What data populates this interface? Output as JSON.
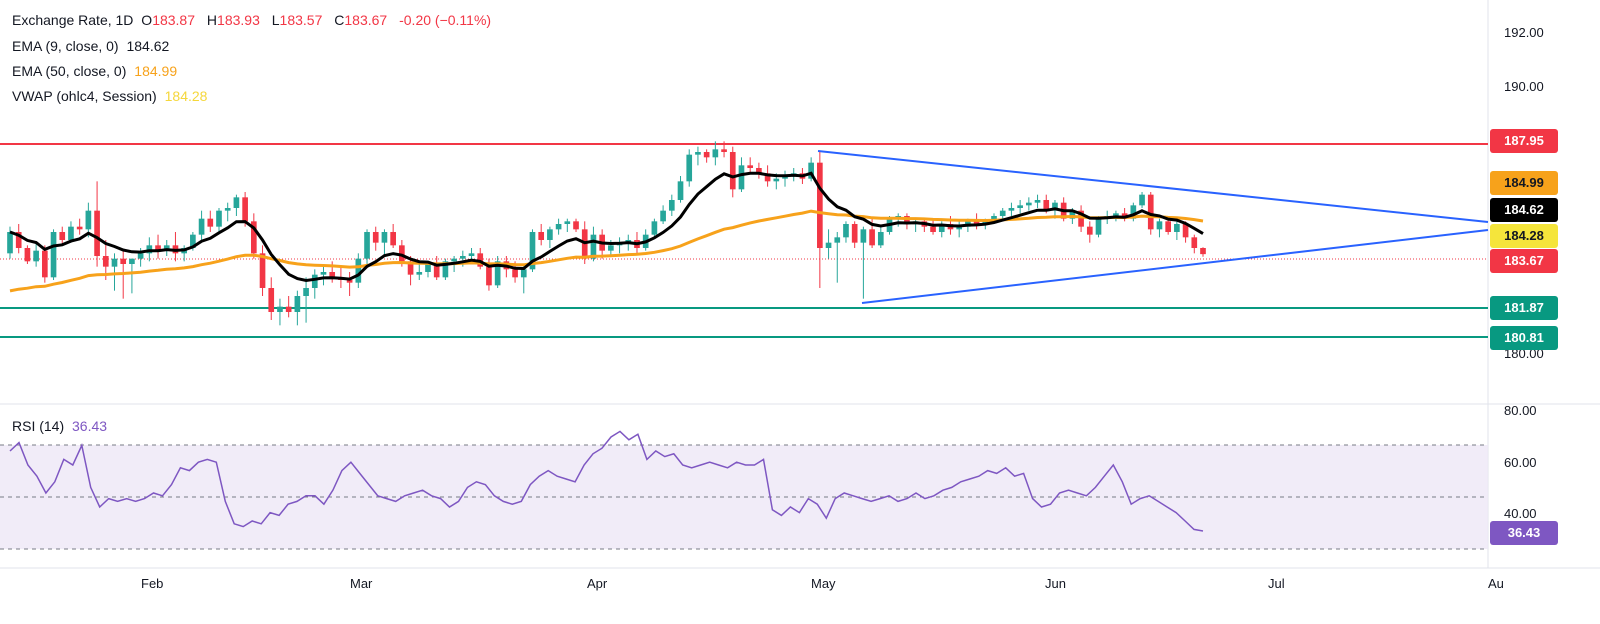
{
  "legend": {
    "title": "Exchange Rate, 1D",
    "o_label": "O",
    "o": "183.87",
    "h_label": "H",
    "h": "183.93",
    "l_label": "L",
    "l": "183.57",
    "c_label": "C",
    "c": "183.67",
    "change": "-0.20 (−0.11%)",
    "ema9_label": "EMA (9, close, 0)",
    "ema9": "184.62",
    "ema50_label": "EMA (50, close, 0)",
    "ema50": "184.99",
    "vwap_label": "VWAP (ohlc4, Session)",
    "vwap": "184.28",
    "rsi_label": "RSI (14)",
    "rsi": "36.43"
  },
  "price_axis": [
    "192.00",
    "190.00",
    "184.62",
    "180.00"
  ],
  "rsi_axis": [
    "80.00",
    "60.00",
    "40.00"
  ],
  "x_axis": [
    "Feb",
    "Mar",
    "Apr",
    "May",
    "Jun",
    "Jul",
    "Au"
  ],
  "tags": {
    "resistance": "187.95",
    "ema50": "184.99",
    "ema9": "184.62",
    "vwap": "184.28",
    "last": "183.67",
    "support1": "181.87",
    "support2": "180.81",
    "rsi": "36.43"
  },
  "colors": {
    "up": "#26a69a",
    "down": "#f23645",
    "ema9": "#000000",
    "ema50": "#f7a21b",
    "vwap": "#f5d73b",
    "trend": "#2962ff",
    "resistance": "#f23645",
    "support": "#089981",
    "rsi": "#7e57c2",
    "rsi_band": "#ede7f6"
  },
  "chart_data": [
    {
      "type": "candlestick",
      "title": "Exchange Rate, 1D",
      "x_ticks": [
        "Feb",
        "Mar",
        "Apr",
        "May",
        "Jun",
        "Jul",
        "Au"
      ],
      "ylim": [
        179.3,
        193.2
      ],
      "series": [
        {
          "name": "Exchange Rate",
          "values": [
            [
              183.7,
              184.7,
              183.5,
              184.5
            ],
            [
              184.5,
              184.8,
              183.7,
              183.9
            ],
            [
              183.9,
              184.0,
              183.3,
              183.4
            ],
            [
              183.4,
              184.1,
              183.2,
              183.8
            ],
            [
              183.8,
              184.0,
              182.6,
              182.8
            ],
            [
              182.8,
              184.6,
              182.7,
              184.5
            ],
            [
              184.5,
              184.7,
              184.0,
              184.2
            ],
            [
              184.2,
              184.9,
              184.1,
              184.7
            ],
            [
              184.7,
              185.0,
              184.4,
              184.6
            ],
            [
              184.6,
              185.6,
              184.3,
              185.3
            ],
            [
              185.3,
              186.4,
              183.2,
              183.6
            ],
            [
              183.6,
              184.2,
              182.7,
              183.2
            ],
            [
              183.2,
              183.7,
              182.3,
              183.5
            ],
            [
              183.5,
              183.8,
              182.0,
              183.3
            ],
            [
              183.3,
              183.5,
              182.2,
              183.5
            ],
            [
              183.5,
              183.9,
              183.2,
              183.7
            ],
            [
              183.7,
              184.3,
              183.4,
              184.0
            ],
            [
              184.0,
              184.4,
              183.5,
              183.8
            ],
            [
              183.8,
              184.2,
              183.6,
              184.0
            ],
            [
              184.0,
              184.5,
              183.4,
              183.7
            ],
            [
              183.7,
              184.0,
              183.4,
              183.9
            ],
            [
              183.9,
              184.5,
              183.8,
              184.4
            ],
            [
              184.4,
              185.3,
              184.2,
              185.0
            ],
            [
              185.0,
              185.3,
              184.5,
              184.7
            ],
            [
              184.7,
              185.4,
              184.5,
              185.3
            ],
            [
              185.3,
              185.6,
              184.9,
              185.4
            ],
            [
              185.4,
              185.9,
              185.1,
              185.8
            ],
            [
              185.8,
              186.0,
              184.7,
              184.9
            ],
            [
              184.9,
              185.2,
              183.5,
              183.7
            ],
            [
              183.7,
              184.0,
              182.1,
              182.4
            ],
            [
              182.4,
              182.8,
              181.2,
              181.5
            ],
            [
              181.5,
              182.0,
              181.0,
              181.7
            ],
            [
              181.7,
              182.1,
              181.3,
              181.5
            ],
            [
              181.5,
              182.3,
              181.0,
              182.1
            ],
            [
              182.1,
              182.8,
              181.1,
              182.4
            ],
            [
              182.4,
              183.1,
              182.0,
              182.9
            ],
            [
              182.9,
              183.3,
              182.5,
              183.0
            ],
            [
              183.0,
              183.4,
              182.6,
              182.8
            ],
            [
              182.8,
              183.2,
              182.4,
              182.7
            ],
            [
              182.7,
              183.0,
              182.1,
              182.6
            ],
            [
              182.6,
              183.7,
              182.4,
              183.5
            ],
            [
              183.5,
              184.6,
              183.3,
              184.5
            ],
            [
              184.5,
              184.7,
              183.8,
              184.1
            ],
            [
              184.1,
              184.6,
              183.6,
              184.5
            ],
            [
              184.5,
              184.8,
              183.9,
              184.0
            ],
            [
              184.0,
              184.2,
              183.2,
              183.4
            ],
            [
              183.4,
              183.6,
              182.5,
              182.9
            ],
            [
              182.9,
              183.3,
              182.7,
              183.0
            ],
            [
              183.0,
              183.4,
              182.8,
              183.3
            ],
            [
              183.3,
              183.6,
              182.7,
              182.8
            ],
            [
              182.8,
              183.5,
              182.7,
              183.4
            ],
            [
              183.4,
              183.6,
              183.0,
              183.5
            ],
            [
              183.5,
              183.8,
              183.2,
              183.6
            ],
            [
              183.6,
              183.9,
              183.3,
              183.7
            ],
            [
              183.7,
              183.9,
              183.1,
              183.2
            ],
            [
              183.2,
              183.5,
              182.3,
              182.5
            ],
            [
              182.5,
              183.6,
              182.4,
              183.4
            ],
            [
              183.4,
              183.6,
              182.8,
              183.1
            ],
            [
              183.1,
              183.4,
              182.6,
              182.8
            ],
            [
              182.8,
              183.3,
              182.2,
              183.1
            ],
            [
              183.1,
              184.6,
              183.0,
              184.5
            ],
            [
              184.5,
              184.8,
              184.0,
              184.2
            ],
            [
              184.2,
              184.7,
              183.9,
              184.6
            ],
            [
              184.6,
              185.0,
              184.4,
              184.8
            ],
            [
              184.8,
              185.0,
              184.5,
              184.9
            ],
            [
              184.9,
              185.0,
              184.5,
              184.6
            ],
            [
              184.6,
              184.9,
              183.3,
              183.5
            ],
            [
              183.5,
              184.7,
              183.4,
              184.4
            ],
            [
              184.4,
              184.6,
              183.5,
              183.8
            ],
            [
              183.8,
              184.2,
              183.6,
              184.0
            ],
            [
              184.0,
              184.3,
              183.7,
              184.1
            ],
            [
              184.1,
              184.4,
              183.8,
              184.2
            ],
            [
              184.2,
              184.5,
              183.7,
              183.9
            ],
            [
              183.9,
              184.6,
              183.8,
              184.4
            ],
            [
              184.4,
              185.0,
              184.3,
              184.9
            ],
            [
              184.9,
              185.5,
              184.8,
              185.3
            ],
            [
              185.3,
              185.9,
              185.1,
              185.7
            ],
            [
              185.7,
              186.6,
              185.6,
              186.4
            ],
            [
              186.4,
              187.6,
              186.2,
              187.4
            ],
            [
              187.4,
              187.7,
              187.0,
              187.5
            ],
            [
              187.5,
              187.6,
              187.1,
              187.3
            ],
            [
              187.3,
              187.9,
              187.0,
              187.6
            ],
            [
              187.6,
              187.9,
              187.3,
              187.5
            ],
            [
              187.5,
              187.7,
              185.8,
              186.1
            ],
            [
              186.1,
              187.3,
              186.0,
              187.0
            ],
            [
              187.0,
              187.3,
              186.7,
              186.9
            ],
            [
              186.9,
              187.1,
              186.5,
              186.7
            ],
            [
              186.7,
              187.0,
              186.2,
              186.4
            ],
            [
              186.4,
              186.7,
              186.1,
              186.5
            ],
            [
              186.5,
              186.8,
              186.2,
              186.6
            ],
            [
              186.6,
              186.9,
              186.4,
              186.7
            ],
            [
              186.7,
              186.9,
              186.3,
              186.5
            ],
            [
              186.5,
              187.3,
              186.4,
              187.1
            ],
            [
              187.1,
              187.5,
              182.4,
              183.9
            ],
            [
              183.9,
              184.6,
              183.5,
              184.1
            ],
            [
              184.1,
              184.5,
              182.6,
              184.3
            ],
            [
              184.3,
              184.9,
              184.1,
              184.8
            ],
            [
              184.8,
              184.9,
              183.9,
              184.1
            ],
            [
              184.1,
              184.7,
              182.0,
              184.6
            ],
            [
              184.6,
              185.0,
              183.9,
              184.0
            ],
            [
              184.0,
              184.7,
              183.9,
              184.5
            ],
            [
              184.5,
              185.1,
              184.4,
              185.0
            ],
            [
              185.0,
              185.2,
              184.7,
              185.1
            ],
            [
              185.1,
              185.2,
              184.6,
              184.8
            ],
            [
              184.8,
              185.0,
              184.5,
              184.9
            ],
            [
              184.9,
              185.0,
              184.5,
              184.7
            ],
            [
              184.7,
              185.0,
              184.4,
              184.5
            ],
            [
              184.5,
              184.9,
              184.3,
              184.8
            ],
            [
              184.8,
              185.1,
              184.4,
              184.6
            ],
            [
              184.6,
              184.9,
              184.3,
              184.7
            ],
            [
              184.7,
              185.0,
              184.5,
              184.9
            ],
            [
              184.9,
              185.2,
              184.6,
              184.8
            ],
            [
              184.8,
              185.0,
              184.6,
              184.9
            ],
            [
              184.9,
              185.2,
              184.8,
              185.1
            ],
            [
              185.1,
              185.4,
              185.0,
              185.3
            ],
            [
              185.3,
              185.6,
              185.1,
              185.4
            ],
            [
              185.4,
              185.7,
              185.2,
              185.5
            ],
            [
              185.5,
              185.8,
              185.3,
              185.6
            ],
            [
              185.6,
              185.9,
              185.4,
              185.7
            ],
            [
              185.7,
              185.9,
              185.2,
              185.3
            ],
            [
              185.3,
              185.7,
              185.0,
              185.6
            ],
            [
              185.6,
              185.8,
              184.9,
              185.0
            ],
            [
              185.0,
              185.4,
              184.8,
              185.3
            ],
            [
              185.3,
              185.5,
              184.5,
              184.7
            ],
            [
              184.7,
              184.9,
              184.1,
              184.4
            ],
            [
              184.4,
              185.1,
              184.3,
              185.0
            ],
            [
              185.0,
              185.3,
              184.8,
              185.1
            ],
            [
              185.1,
              185.3,
              184.9,
              185.2
            ],
            [
              185.2,
              185.4,
              184.9,
              185.0
            ],
            [
              185.0,
              185.6,
              184.9,
              185.5
            ],
            [
              185.5,
              186.0,
              185.4,
              185.9
            ],
            [
              185.9,
              186.0,
              184.4,
              184.6
            ],
            [
              184.6,
              185.0,
              184.3,
              184.9
            ],
            [
              184.9,
              185.1,
              184.4,
              184.5
            ],
            [
              184.5,
              185.0,
              184.2,
              184.8
            ],
            [
              184.8,
              184.9,
              184.1,
              184.3
            ],
            [
              184.3,
              184.4,
              183.7,
              183.9
            ],
            [
              183.9,
              183.93,
              183.57,
              183.67
            ]
          ]
        },
        {
          "name": "EMA (9, close, 0)",
          "last": 184.62
        },
        {
          "name": "EMA (50, close, 0)",
          "last": 184.99
        },
        {
          "name": "VWAP (ohlc4, Session)",
          "last": 184.28
        }
      ],
      "horizontal_levels": [
        187.95,
        181.87,
        180.81
      ],
      "last_price": 183.67
    },
    {
      "type": "line",
      "title": "RSI (14)",
      "ylim": [
        30,
        80
      ],
      "bands": [
        70,
        50,
        30
      ],
      "series": [
        {
          "name": "RSI (14)",
          "values": [
            65,
            68,
            60,
            56,
            50,
            54,
            62,
            60,
            67,
            52,
            45,
            48,
            47,
            48,
            47,
            48,
            50,
            49,
            53,
            59,
            58,
            61,
            62,
            61,
            47,
            39,
            38,
            40,
            39,
            43,
            42,
            46,
            47,
            49,
            49,
            46,
            51,
            58,
            61,
            57,
            53,
            49,
            48,
            47,
            49,
            50,
            51,
            49,
            48,
            45,
            47,
            52,
            54,
            53,
            49,
            47,
            46,
            47,
            53,
            56,
            58,
            56,
            55,
            54,
            60,
            64,
            66,
            70,
            72,
            69,
            71,
            62,
            65,
            63,
            64,
            60,
            59,
            60,
            61,
            60,
            59,
            61,
            60,
            60,
            62,
            44,
            42,
            45,
            43,
            48,
            46,
            41,
            48,
            50,
            49,
            48,
            47,
            48,
            49,
            47,
            48,
            50,
            48,
            49,
            51,
            52,
            54,
            55,
            56,
            58,
            57,
            59,
            56,
            57,
            48,
            45,
            46,
            50,
            51,
            50,
            49,
            52,
            56,
            60,
            54,
            46,
            48,
            49,
            47,
            45,
            43,
            40,
            37,
            36.43
          ]
        }
      ]
    }
  ]
}
